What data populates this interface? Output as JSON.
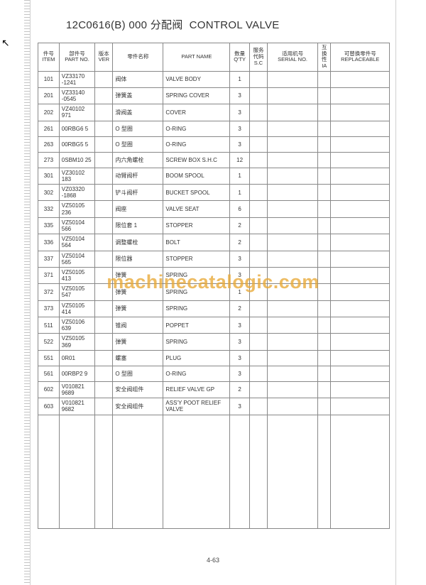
{
  "cursor_glyph": "↖",
  "title_code": "12C0616(B) 000",
  "title_cn": "分配阀",
  "title_en": "CONTROL VALVE",
  "page_number": "4-63",
  "watermark": "machinecatalogic.com",
  "headers": {
    "item_cn": "件号",
    "item_en": "ITEM",
    "partno_cn": "部件号",
    "partno_en": "PART NO.",
    "ver_cn": "版本",
    "ver_en": "VER",
    "namecn": "零件名称",
    "nameen": "PART NAME",
    "qty_cn": "数量",
    "qty_en": "Q'TY",
    "sc_cn": "服务代码",
    "sc_en": "S.C",
    "serial_cn": "适用机号",
    "serial_en": "SERIAL NO.",
    "ia_cn": "互换性",
    "ia_en": "IA",
    "repl_cn": "可替换零件号",
    "repl_en": "REPLACEABLE"
  },
  "rows": [
    {
      "item": "101",
      "partno": "VZ33170 -1241",
      "namecn": "阀体",
      "nameen": "VALVE BODY",
      "qty": "1"
    },
    {
      "item": "201",
      "partno": "VZ33140 -0545",
      "namecn": "弹簧盖",
      "nameen": "SPRING COVER",
      "qty": "3"
    },
    {
      "item": "202",
      "partno": "VZ40102 971",
      "namecn": "滑阀盖",
      "nameen": "COVER",
      "qty": "3"
    },
    {
      "item": "261",
      "partno": "00RBG6 5",
      "namecn": "O 型圈",
      "nameen": "O-RING",
      "qty": "3"
    },
    {
      "item": "263",
      "partno": "00RBG5 5",
      "namecn": "O 型圈",
      "nameen": "O-RING",
      "qty": "3"
    },
    {
      "item": "273",
      "partno": "0SBM10 25",
      "namecn": "内六角螺栓",
      "nameen": "SCREW BOX S.H.C",
      "qty": "12"
    },
    {
      "item": "301",
      "partno": "VZ30102 183",
      "namecn": "动臂阀杆",
      "nameen": "BOOM SPOOL",
      "qty": "1"
    },
    {
      "item": "302",
      "partno": "VZ03320 -1868",
      "namecn": "铲斗阀杆",
      "nameen": "BUCKET SPOOL",
      "qty": "1"
    },
    {
      "item": "332",
      "partno": "VZ50105 236",
      "namecn": "阀座",
      "nameen": "VALVE SEAT",
      "qty": "6"
    },
    {
      "item": "335",
      "partno": "VZ50104 566",
      "namecn": "限位套 1",
      "nameen": "STOPPER",
      "qty": "2"
    },
    {
      "item": "336",
      "partno": "VZ50104 564",
      "namecn": "调整螺栓",
      "nameen": "BOLT",
      "qty": "2"
    },
    {
      "item": "337",
      "partno": "VZ50104 565",
      "namecn": "限位器",
      "nameen": "STOPPER",
      "qty": "3"
    },
    {
      "item": "371",
      "partno": "VZ50105 413",
      "namecn": "弹簧",
      "nameen": "SPRING",
      "qty": "3"
    },
    {
      "item": "372",
      "partno": "VZ50105 547",
      "namecn": "弹簧",
      "nameen": "SPRING",
      "qty": "1"
    },
    {
      "item": "373",
      "partno": "VZ50105 414",
      "namecn": "弹簧",
      "nameen": "SPRING",
      "qty": "2"
    },
    {
      "item": "511",
      "partno": "VZ50106 639",
      "namecn": "锥阀",
      "nameen": "POPPET",
      "qty": "3"
    },
    {
      "item": "522",
      "partno": "VZ50105 369",
      "namecn": "弹簧",
      "nameen": "SPRING",
      "qty": "3"
    },
    {
      "item": "551",
      "partno": "0R01",
      "namecn": "螺塞",
      "nameen": "PLUG",
      "qty": "3"
    },
    {
      "item": "561",
      "partno": "00RBP2 9",
      "namecn": "O 型圈",
      "nameen": "O-RING",
      "qty": "3"
    },
    {
      "item": "602",
      "partno": "V010821 9689",
      "namecn": "安全阀组件",
      "nameen": "RELIEF VALVE GP",
      "qty": "2"
    },
    {
      "item": "603",
      "partno": "V010821 9682",
      "namecn": "安全阀组件",
      "nameen": "ASS'Y POOT RELIEF VALVE",
      "qty": "3"
    }
  ]
}
